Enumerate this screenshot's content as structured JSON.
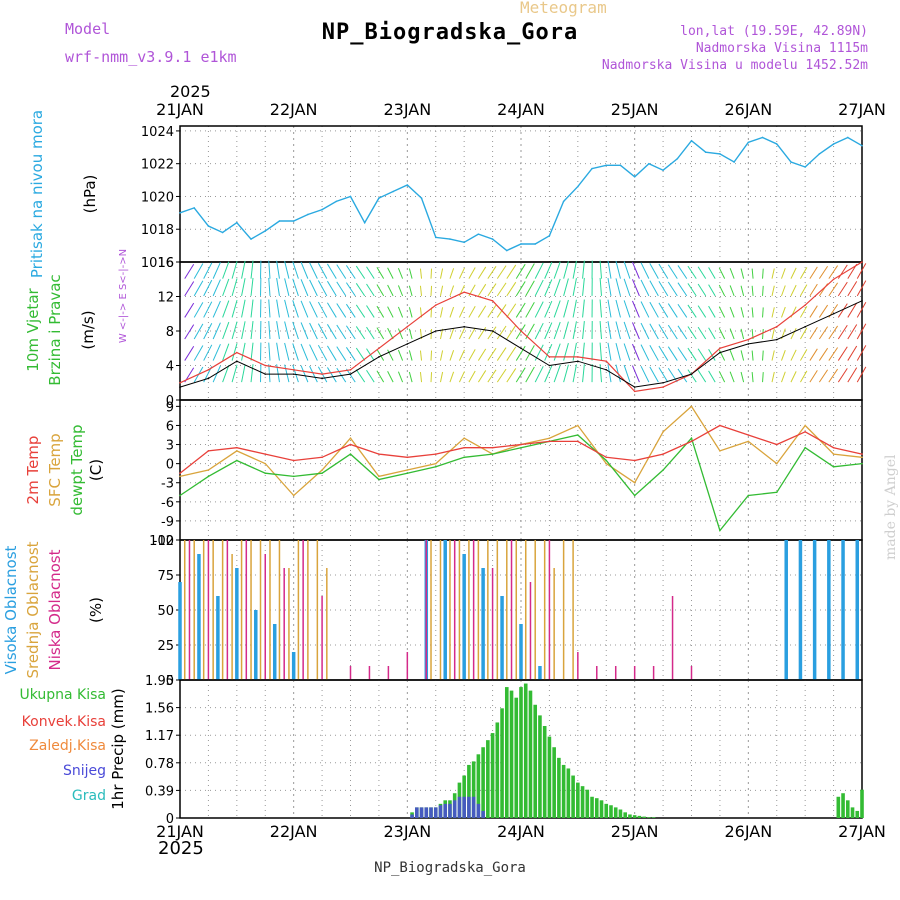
{
  "header": {
    "title": "NP_Biogradska_Gora",
    "meteogram_label": "Meteogram",
    "model_label": "Model",
    "model_name": "wrf-nmm_v3.9.1 e1km",
    "lonlat": "lon,lat (19.59E, 42.89N)",
    "altitude": "Nadmorska Visina 1115m",
    "model_altitude": "Nadmorska Visina u modelu 1452.52m",
    "year_top": "2025",
    "year_bottom": "2025"
  },
  "footer": {
    "station": "NP_Biogradska_Gora",
    "credit": "made by Angel"
  },
  "colors": {
    "pressure": "#2aa9e0",
    "wind_speed": "#000000",
    "wind_gust": "#e8403a",
    "t2m": "#e8403a",
    "tsfc": "#d9a43c",
    "dewpt": "#33bb33",
    "cloud_high": "#2a9fe0",
    "cloud_mid": "#d9a43c",
    "cloud_low": "#d42a8a",
    "precip_total": "#33bb33",
    "precip_conv": "#e8403a",
    "precip_frozen": "#ef8a3c",
    "precip_snow": "#4a4ad8",
    "precip_hail": "#2abcbc"
  },
  "chart_data": [
    {
      "type": "line",
      "panel": "pressure",
      "ylabel_a": "Pritisak na nivou mora",
      "ylabel_b": "(hPa)",
      "x_range": [
        "2025-01-21T00",
        "2025-01-27T00"
      ],
      "x_ticks": [
        "21JAN",
        "22JAN",
        "23JAN",
        "24JAN",
        "25JAN",
        "26JAN",
        "27JAN"
      ],
      "ylim": [
        1016,
        1024.3
      ],
      "y_ticks": [
        "1016",
        "1018",
        "1020",
        "1022",
        "1024"
      ],
      "grid": true,
      "series": [
        {
          "hours": [
            0,
            3,
            6,
            9,
            12,
            15,
            18,
            21,
            24,
            27,
            30,
            33,
            36,
            39,
            42,
            45,
            48,
            51,
            54,
            57,
            60,
            63,
            66,
            69,
            72,
            75,
            78,
            81,
            84,
            87,
            90,
            93,
            96,
            99,
            102,
            105,
            108,
            111,
            114,
            117,
            120,
            123,
            126,
            129,
            132,
            135,
            138,
            141,
            144
          ],
          "values": [
            1019.0,
            1019.3,
            1018.2,
            1017.8,
            1018.4,
            1017.4,
            1017.9,
            1018.5,
            1018.5,
            1018.9,
            1019.2,
            1019.7,
            1020.0,
            1018.4,
            1019.9,
            1020.3,
            1020.7,
            1019.9,
            1017.5,
            1017.4,
            1017.2,
            1017.7,
            1017.4,
            1016.7,
            1017.1,
            1017.1,
            1017.6,
            1019.7,
            1020.6,
            1021.7,
            1021.9,
            1021.9,
            1021.2,
            1022.0,
            1021.6,
            1022.3,
            1023.4,
            1022.7,
            1022.6,
            1022.1,
            1023.3,
            1023.6,
            1023.2,
            1022.1,
            1021.8,
            1022.6,
            1023.2,
            1023.6,
            1023.1
          ]
        }
      ]
    },
    {
      "type": "line",
      "panel": "wind",
      "ylabel_a": "10m Vjetar",
      "ylabel_b": "Brzina i Pravac",
      "ylabel_c": "(m/s)",
      "compass": "W <-|-> E  S<-|->N",
      "ylim": [
        0,
        16
      ],
      "y_ticks": [
        "0",
        "4",
        "8",
        "12",
        "16"
      ],
      "grid": true,
      "series": [
        {
          "role": "speed",
          "hours": [
            0,
            6,
            12,
            18,
            24,
            30,
            36,
            42,
            48,
            54,
            60,
            66,
            72,
            78,
            84,
            90,
            96,
            102,
            108,
            114,
            120,
            126,
            132,
            138,
            144
          ],
          "values": [
            1.5,
            2.5,
            4.5,
            3.0,
            3.0,
            2.5,
            3.0,
            5.0,
            6.5,
            8.0,
            8.5,
            8.0,
            6.0,
            4.0,
            4.5,
            3.5,
            1.5,
            2.0,
            3.0,
            5.5,
            6.5,
            7.0,
            8.5,
            10.0,
            11.5
          ]
        },
        {
          "role": "gust",
          "hours": [
            0,
            6,
            12,
            18,
            24,
            30,
            36,
            42,
            48,
            54,
            60,
            66,
            72,
            78,
            84,
            90,
            96,
            102,
            108,
            114,
            120,
            126,
            132,
            138,
            144
          ],
          "values": [
            2.0,
            3.5,
            5.5,
            4.0,
            3.5,
            3.0,
            3.5,
            6.0,
            8.5,
            11.0,
            12.5,
            11.5,
            8.0,
            5.0,
            5.0,
            4.5,
            1.0,
            1.5,
            3.0,
            6.0,
            7.0,
            8.5,
            11.0,
            14.0,
            16.0
          ]
        }
      ]
    },
    {
      "type": "line",
      "panel": "temperature",
      "ylabel_a": "2m Temp",
      "ylabel_b": "SFC Temp",
      "ylabel_c": "dewpt Temp",
      "ylabel_d": "(C)",
      "ylim": [
        -12,
        10
      ],
      "y_ticks": [
        "-12",
        "-9",
        "-6",
        "-3",
        "0",
        "3",
        "6",
        "9"
      ],
      "grid": true,
      "series": [
        {
          "role": "t2m",
          "hours": [
            0,
            6,
            12,
            18,
            24,
            30,
            36,
            42,
            48,
            54,
            60,
            66,
            72,
            78,
            84,
            90,
            96,
            102,
            108,
            114,
            120,
            126,
            132,
            138,
            144
          ],
          "values": [
            -1.5,
            2.0,
            2.5,
            1.5,
            0.5,
            1.0,
            3.0,
            1.5,
            1.0,
            1.5,
            2.5,
            2.5,
            3.0,
            3.5,
            3.5,
            1.0,
            0.5,
            1.5,
            3.5,
            6.0,
            4.5,
            3.0,
            5.0,
            2.5,
            1.5
          ]
        },
        {
          "role": "tsfc",
          "hours": [
            0,
            6,
            12,
            18,
            24,
            30,
            36,
            42,
            48,
            54,
            60,
            66,
            72,
            78,
            84,
            90,
            96,
            102,
            108,
            114,
            120,
            126,
            132,
            138,
            144
          ],
          "values": [
            -2.0,
            -1.0,
            2.0,
            0.0,
            -5.0,
            -1.0,
            4.0,
            -2.0,
            -1.0,
            0.0,
            4.0,
            1.5,
            3.0,
            4.0,
            6.0,
            0.0,
            -3.0,
            5.0,
            9.0,
            2.0,
            3.5,
            0.0,
            6.0,
            1.5,
            1.0
          ]
        },
        {
          "role": "dewpt",
          "hours": [
            0,
            6,
            12,
            18,
            24,
            30,
            36,
            42,
            48,
            54,
            60,
            66,
            72,
            78,
            84,
            90,
            96,
            102,
            108,
            114,
            120,
            126,
            132,
            138,
            144
          ],
          "values": [
            -5.0,
            -2.0,
            0.5,
            -1.5,
            -2.0,
            -1.5,
            1.5,
            -2.5,
            -1.5,
            -0.5,
            1.0,
            1.5,
            2.5,
            3.5,
            4.5,
            0.5,
            -5.0,
            -1.0,
            4.0,
            -10.5,
            -5.0,
            -4.5,
            2.5,
            -0.5,
            0.0
          ]
        }
      ]
    },
    {
      "type": "bar",
      "panel": "clouds",
      "ylabel_a": "Visoka Oblacnost",
      "ylabel_b": "Srednja Oblacnost",
      "ylabel_c": "Niska Oblacnost",
      "ylabel_d": "(%)",
      "ylim": [
        0,
        100
      ],
      "y_ticks": [
        "0",
        "25",
        "50",
        "75",
        "100"
      ],
      "grid": true,
      "series": [
        {
          "role": "high",
          "hours": [
            0,
            4,
            8,
            12,
            16,
            20,
            24,
            52,
            56,
            60,
            64,
            68,
            72,
            76,
            128,
            131,
            134,
            137,
            140,
            143
          ],
          "values": [
            70,
            90,
            60,
            80,
            50,
            40,
            20,
            100,
            100,
            90,
            80,
            60,
            40,
            10,
            100,
            100,
            100,
            100,
            100,
            100
          ]
        },
        {
          "role": "mid",
          "hours": [
            1,
            3,
            5,
            7,
            9,
            11,
            13,
            15,
            17,
            19,
            21,
            23,
            25,
            27,
            29,
            31,
            53,
            55,
            57,
            59,
            61,
            63,
            65,
            67,
            69,
            71,
            73,
            75,
            77,
            79,
            81,
            83
          ],
          "values": [
            100,
            100,
            100,
            100,
            100,
            90,
            100,
            100,
            100,
            100,
            100,
            80,
            100,
            100,
            100,
            80,
            100,
            100,
            100,
            100,
            100,
            100,
            100,
            100,
            100,
            100,
            100,
            100,
            100,
            80,
            100,
            100
          ]
        },
        {
          "role": "low",
          "hours": [
            2,
            6,
            10,
            14,
            18,
            22,
            26,
            30,
            36,
            40,
            44,
            48,
            52,
            58,
            62,
            66,
            70,
            74,
            78,
            84,
            88,
            92,
            96,
            100,
            104,
            108
          ],
          "values": [
            100,
            100,
            100,
            100,
            90,
            80,
            100,
            60,
            10,
            10,
            10,
            20,
            100,
            100,
            100,
            80,
            100,
            70,
            100,
            20,
            10,
            10,
            10,
            10,
            60,
            10
          ]
        }
      ]
    },
    {
      "type": "bar",
      "panel": "precip",
      "legend": [
        "Ukupna Kisa",
        "Konvek.Kisa",
        "Zaledj.Kisa",
        "Snijeg",
        "Grad"
      ],
      "ylabel_a": "1hr Precip (mm)",
      "ylim": [
        0,
        1.95
      ],
      "y_ticks": [
        "0",
        "0.39",
        "0.78",
        "1.17",
        "1.56",
        "1.95"
      ],
      "grid": true,
      "series": [
        {
          "role": "total",
          "hours": [
            49,
            50,
            51,
            52,
            53,
            54,
            55,
            56,
            57,
            58,
            59,
            60,
            61,
            62,
            63,
            64,
            65,
            66,
            67,
            68,
            69,
            70,
            71,
            72,
            73,
            74,
            75,
            76,
            77,
            78,
            79,
            80,
            81,
            82,
            83,
            84,
            85,
            86,
            87,
            88,
            89,
            90,
            91,
            92,
            93,
            94,
            95,
            96,
            97,
            98,
            99,
            100,
            139,
            140,
            141,
            142,
            143,
            144
          ],
          "values": [
            0.08,
            0.15,
            0.15,
            0.15,
            0.15,
            0.15,
            0.2,
            0.25,
            0.25,
            0.35,
            0.5,
            0.6,
            0.75,
            0.8,
            0.9,
            1.0,
            1.1,
            1.2,
            1.35,
            1.55,
            1.85,
            1.8,
            1.7,
            1.85,
            1.9,
            1.8,
            1.6,
            1.45,
            1.3,
            1.15,
            1.0,
            0.85,
            0.75,
            0.7,
            0.6,
            0.5,
            0.45,
            0.4,
            0.3,
            0.28,
            0.25,
            0.2,
            0.18,
            0.15,
            0.12,
            0.08,
            0.05,
            0.04,
            0.03,
            0.02,
            0.01,
            0.01,
            0.3,
            0.35,
            0.25,
            0.15,
            0.1,
            0.4
          ]
        },
        {
          "role": "snow",
          "hours": [
            49,
            50,
            51,
            52,
            53,
            54,
            55,
            56,
            57,
            58,
            59,
            60,
            61,
            62,
            63,
            64
          ],
          "values": [
            0.05,
            0.15,
            0.15,
            0.15,
            0.15,
            0.15,
            0.18,
            0.2,
            0.2,
            0.25,
            0.3,
            0.3,
            0.3,
            0.3,
            0.2,
            0.1
          ]
        }
      ]
    }
  ]
}
